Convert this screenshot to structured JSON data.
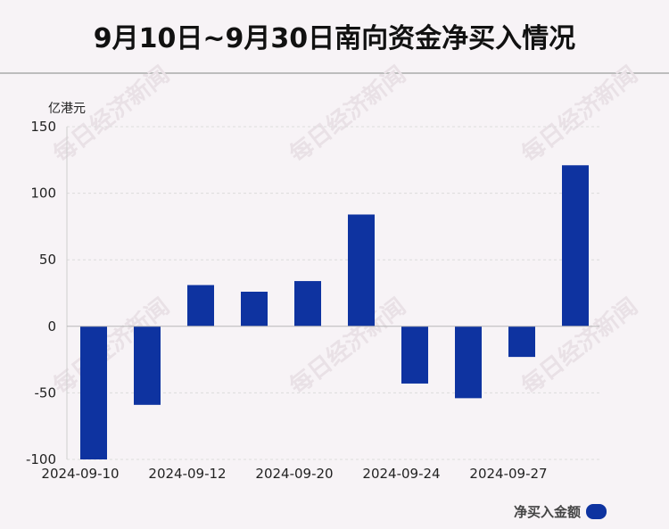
{
  "title": "9月10日~9月30日南向资金净买入情况",
  "chart_data": {
    "type": "bar",
    "title": "9月10日~9月30日南向资金净买入情况",
    "ylabel": "亿港元",
    "xlabel": "",
    "ylim": [
      -100,
      150
    ],
    "yticks": [
      150,
      100,
      50,
      0,
      -50,
      -100
    ],
    "x_tick_labels": [
      "2024-09-10",
      "2024-09-12",
      "2024-09-20",
      "2024-09-24",
      "2024-09-27"
    ],
    "categories": [
      "2024-09-10",
      "",
      "2024-09-12",
      "",
      "2024-09-20",
      "",
      "2024-09-24",
      "",
      "2024-09-27",
      ""
    ],
    "series": [
      {
        "name": "净买入金额",
        "values": [
          -100,
          -59,
          31,
          26,
          34,
          84,
          -43,
          -54,
          -23,
          121
        ]
      }
    ],
    "grid": true,
    "legend_position": "bottom-right",
    "bar_color": "#0e33a0"
  },
  "watermark": "每日经济新闻"
}
